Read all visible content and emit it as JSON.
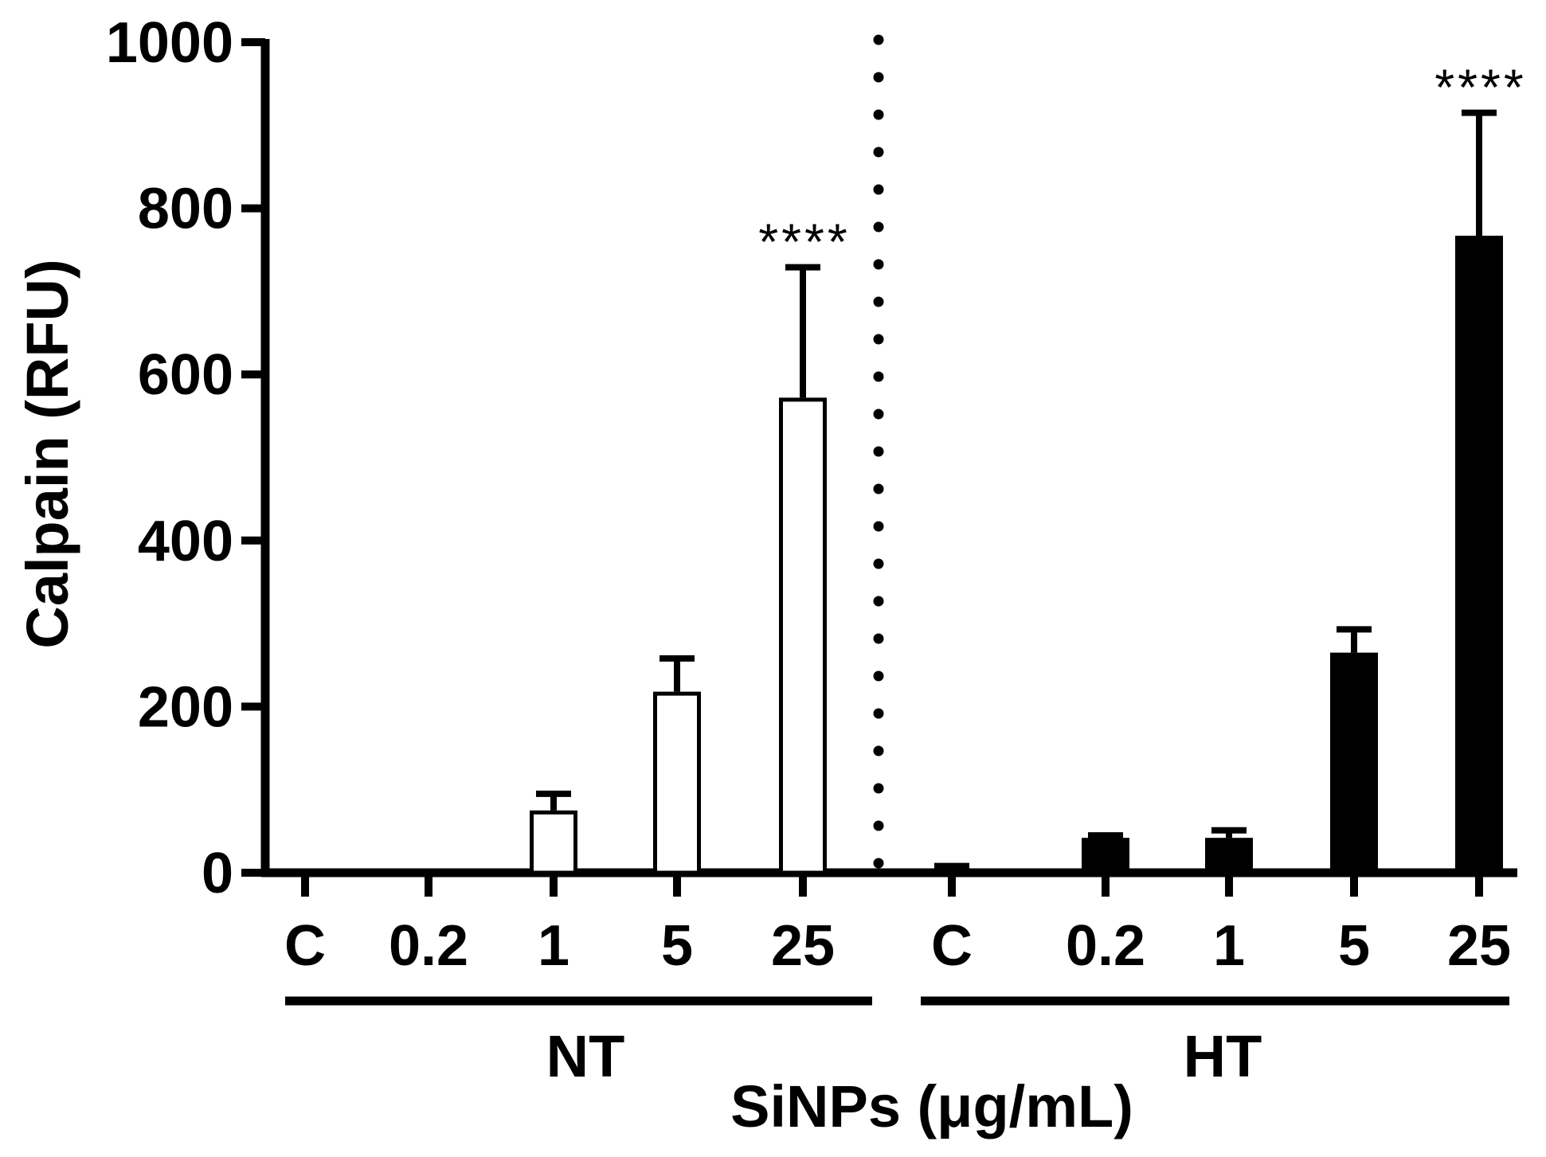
{
  "chart_data": {
    "type": "bar",
    "title": "",
    "ylabel": "Calpain (RFU)",
    "xlabel": "SiNPs (μg/mL)",
    "ylim": [
      0,
      1000
    ],
    "yticks": [
      "0",
      "200",
      "400",
      "600",
      "800",
      "1000"
    ],
    "yticks_values": [
      0,
      200,
      400,
      600,
      800,
      1000
    ],
    "grid": false,
    "groups": [
      {
        "name": "NT",
        "fill": "#ffffff",
        "categories": [
          "C",
          "0.2",
          "1",
          "5",
          "25"
        ],
        "values": [
          0,
          0,
          75,
          218,
          572
        ],
        "errors": [
          0,
          0,
          20,
          40,
          157
        ],
        "significance": [
          "",
          "",
          "",
          "",
          "****"
        ]
      },
      {
        "name": "HT",
        "fill": "#000000",
        "categories": [
          "C",
          "0.2",
          "1",
          "5",
          "25"
        ],
        "values": [
          3,
          42,
          42,
          265,
          767
        ],
        "errors": [
          5,
          3,
          9,
          28,
          148
        ],
        "significance": [
          "",
          "",
          "",
          "",
          "****"
        ]
      }
    ]
  }
}
